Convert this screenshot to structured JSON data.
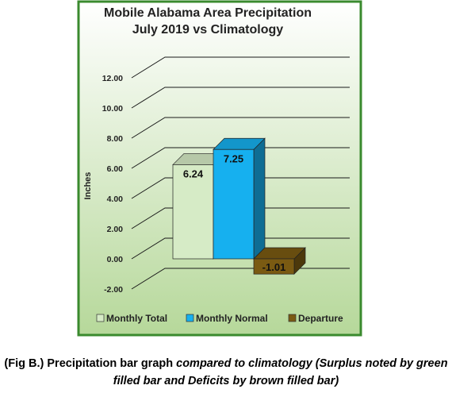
{
  "chart_data": {
    "type": "bar",
    "title_line1": "Mobile Alabama Area Precipitation",
    "title_line2": "July 2019 vs Climatology",
    "ylabel": "Inches",
    "xlabel": "",
    "ylim": [
      -2,
      12
    ],
    "yticks": [
      "12.00",
      "10.00",
      "8.00",
      "6.00",
      "4.00",
      "2.00",
      "0.00",
      "-2.00"
    ],
    "series": [
      {
        "name": "Monthly Total",
        "value": 6.24,
        "label": "6.24",
        "color": "#d6ebc6"
      },
      {
        "name": "Monthly Normal",
        "value": 7.25,
        "label": "7.25",
        "color": "#16b0ef"
      },
      {
        "name": "Departure",
        "value": -1.01,
        "label": "-1.01",
        "color": "#7a5a12"
      }
    ],
    "legend": "bottom",
    "plot_background": [
      "#ffffff",
      "#b6d89a"
    ],
    "border_color": "#3a8a2e"
  },
  "caption": {
    "part1": "(Fig B.) Precipitation bar graph ",
    "part2": "compared to climatology (Surplus noted by green filled bar and Deficits by brown filled bar)"
  }
}
